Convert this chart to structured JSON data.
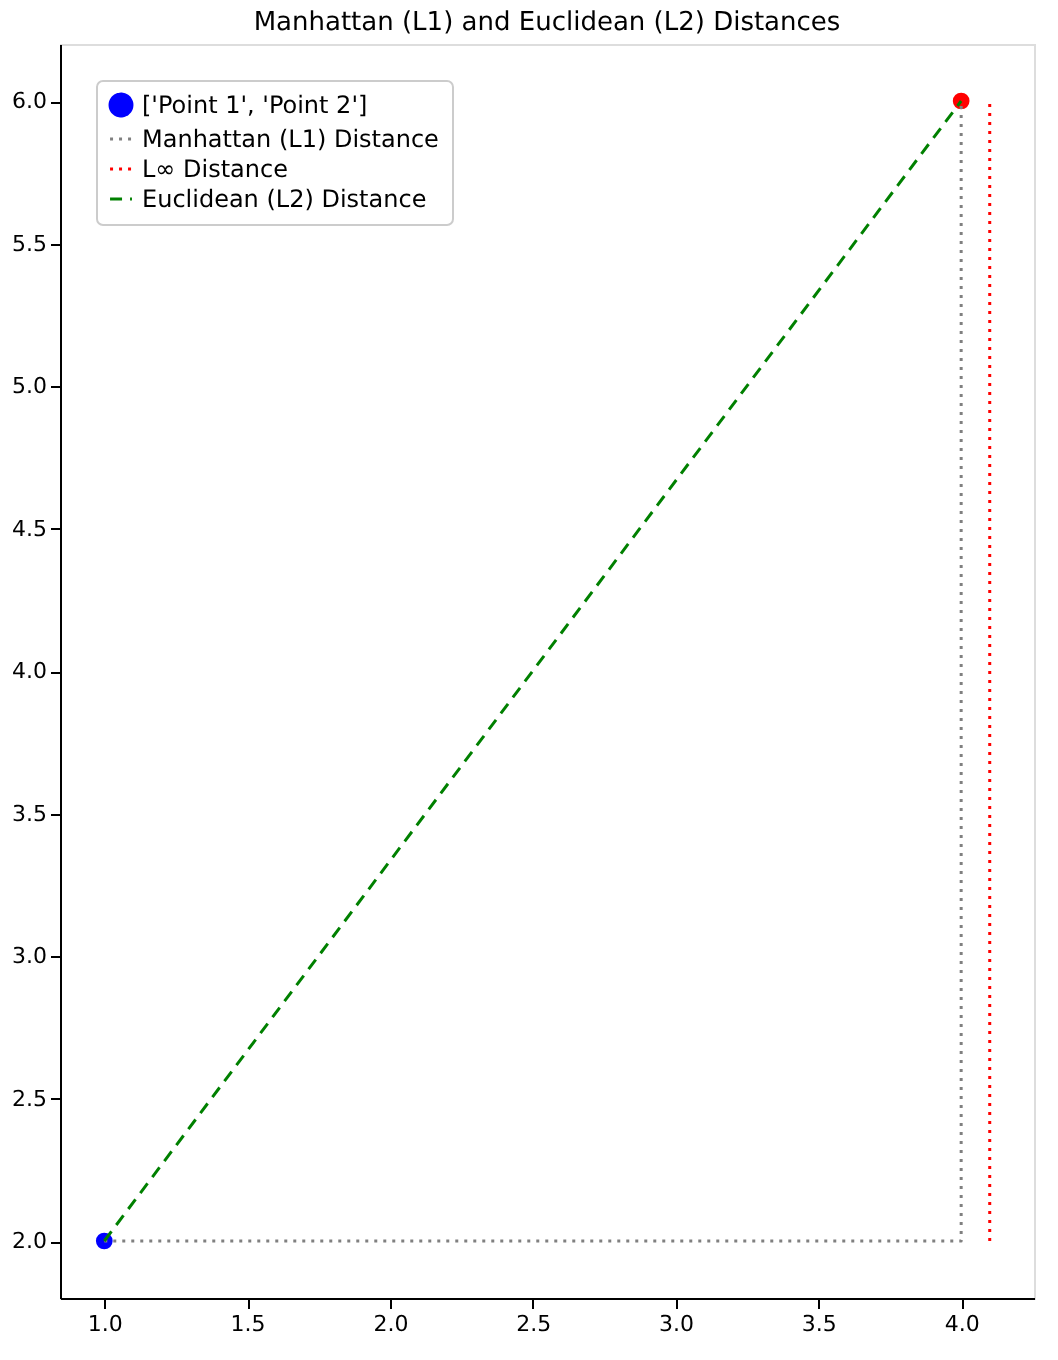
{
  "chart_data": {
    "type": "line",
    "title": "Manhattan (L1) and Euclidean (L2) Distances",
    "xlim": [
      0.845,
      4.255
    ],
    "xticks": [
      {
        "value": 1,
        "label": "1.0"
      },
      1.5,
      {
        "value": 2,
        "label": "2.0"
      },
      2.5,
      {
        "value": 3,
        "label": "3.0"
      },
      3.5,
      {
        "value": 4,
        "label": "4.0"
      }
    ],
    "ylim": [
      1.8,
      6.2
    ],
    "yticks": [
      {
        "value": 2,
        "label": "2.0"
      },
      2.5,
      {
        "value": 3,
        "label": "3.0"
      },
      3.5,
      {
        "value": 4,
        "label": "4.0"
      },
      4.5,
      {
        "value": 5,
        "label": "5.0"
      },
      5.5,
      {
        "value": 6,
        "label": "6.0"
      }
    ],
    "grid": false,
    "legend": "top left",
    "series": [
      {
        "name": "['Point 1', 'Point 2']",
        "type": "scatter",
        "marker": "circle",
        "color": "#0000ff",
        "colors": [
          "#0000ff",
          "#ff0000"
        ],
        "x": [
          1,
          4
        ],
        "values": [
          2,
          6
        ]
      },
      {
        "name": "Manhattan (L1) Distance",
        "line_style": "dotted",
        "color": "#808080",
        "x": [
          1,
          4,
          4
        ],
        "values": [
          2,
          2,
          6
        ]
      },
      {
        "name": "L∞ Distance",
        "line_style": "dotted",
        "color": "#ff0000",
        "x": [
          4.1,
          4.1
        ],
        "values": [
          2,
          6
        ]
      },
      {
        "name": "Euclidean (L2) Distance",
        "line_style": "dashed",
        "color": "#008000",
        "x": [
          1,
          4
        ],
        "values": [
          2,
          6
        ]
      }
    ]
  }
}
